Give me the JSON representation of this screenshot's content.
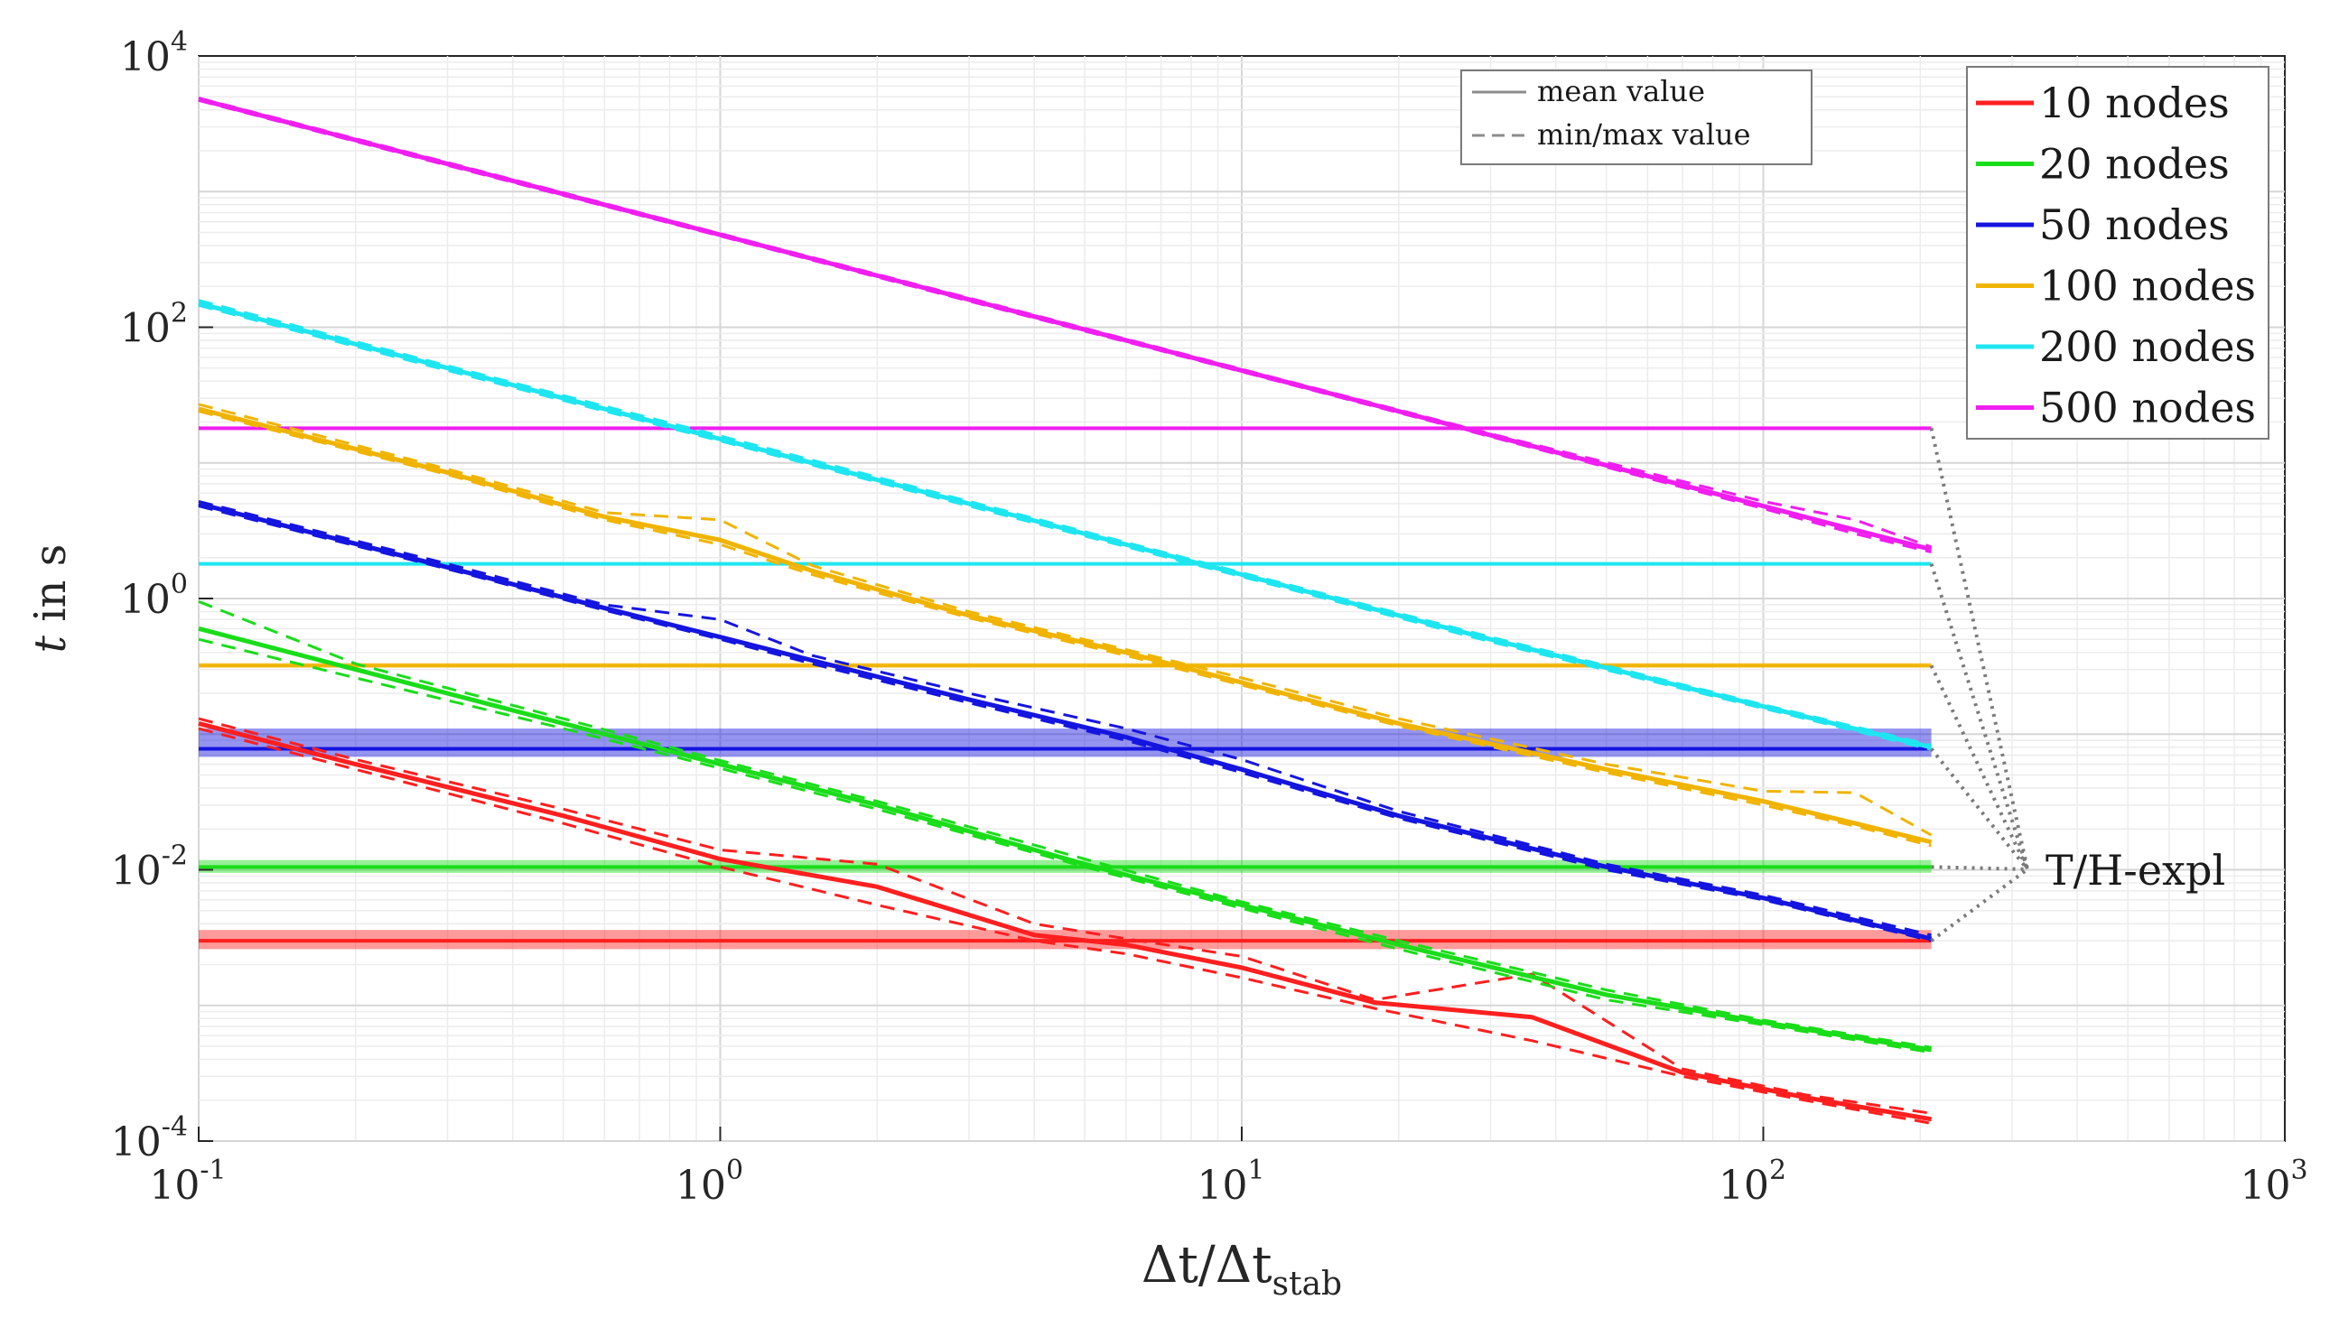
{
  "chart_data": {
    "type": "line",
    "scale": {
      "x": "log",
      "y": "log"
    },
    "xlim": [
      0.1,
      1000
    ],
    "ylim": [
      0.0001,
      10000
    ],
    "xlabel_main": "Δt/Δt",
    "xlabel_sub": "stab",
    "ylabel_italic": "t",
    "ylabel_rest": " in s",
    "grid": true,
    "minor_grid": true,
    "x_ticks": [
      {
        "base": "10",
        "exp": "-1"
      },
      {
        "base": "10",
        "exp": "0"
      },
      {
        "base": "10",
        "exp": "1"
      },
      {
        "base": "10",
        "exp": "2"
      },
      {
        "base": "10",
        "exp": "3"
      }
    ],
    "y_ticks": [
      {
        "base": "10",
        "exp": "-4"
      },
      {
        "base": "10",
        "exp": "-2"
      },
      {
        "base": "10",
        "exp": "0"
      },
      {
        "base": "10",
        "exp": "2"
      },
      {
        "base": "10",
        "exp": "4"
      }
    ],
    "legend_style": {
      "position": "top-center-right",
      "mean": "mean value",
      "minmax": "min/max value"
    },
    "legend_position": "top-right",
    "series": [
      {
        "name": "10 nodes",
        "color": "#ff1f1f",
        "x": [
          0.1,
          0.2,
          0.5,
          1,
          2,
          4,
          6,
          10,
          18,
          36,
          70,
          120,
          210
        ],
        "mean": [
          0.12,
          0.06,
          0.025,
          0.012,
          0.0075,
          0.0033,
          0.0028,
          0.0019,
          0.00105,
          0.00082,
          0.00032,
          0.00021,
          0.000145
        ],
        "min": [
          0.11,
          0.055,
          0.022,
          0.0105,
          0.0055,
          0.003,
          0.0024,
          0.0016,
          0.00095,
          0.00055,
          0.0003,
          0.0002,
          0.000135
        ],
        "max": [
          0.13,
          0.065,
          0.028,
          0.014,
          0.011,
          0.004,
          0.0031,
          0.0023,
          0.0011,
          0.0017,
          0.00034,
          0.00022,
          0.00016
        ],
        "explicit": 0.003,
        "explicit_band": [
          0.0026,
          0.0036
        ]
      },
      {
        "name": "20 nodes",
        "color": "#19dd19",
        "x": [
          0.1,
          0.2,
          0.5,
          1,
          2,
          5,
          10,
          20,
          50,
          100,
          210
        ],
        "mean": [
          0.6,
          0.3,
          0.12,
          0.06,
          0.03,
          0.011,
          0.0055,
          0.0028,
          0.0012,
          0.00075,
          0.00047
        ],
        "min": [
          0.5,
          0.26,
          0.11,
          0.056,
          0.028,
          0.0105,
          0.0052,
          0.0026,
          0.0011,
          0.00072,
          0.00045
        ],
        "max": [
          0.95,
          0.33,
          0.13,
          0.064,
          0.032,
          0.012,
          0.0058,
          0.003,
          0.0013,
          0.00078,
          0.00049
        ],
        "explicit": 0.0105,
        "explicit_band": [
          0.0095,
          0.0118
        ]
      },
      {
        "name": "50 nodes",
        "color": "#1515e0",
        "x": [
          0.1,
          0.3,
          0.6,
          1,
          1.5,
          3,
          6,
          10,
          20,
          50,
          100,
          210
        ],
        "mean": [
          5.0,
          1.7,
          0.85,
          0.52,
          0.35,
          0.18,
          0.095,
          0.055,
          0.025,
          0.0105,
          0.0062,
          0.0031
        ],
        "min": [
          4.8,
          1.65,
          0.82,
          0.5,
          0.33,
          0.17,
          0.09,
          0.052,
          0.024,
          0.01,
          0.006,
          0.003
        ],
        "max": [
          5.2,
          1.8,
          0.9,
          0.7,
          0.38,
          0.2,
          0.11,
          0.065,
          0.027,
          0.011,
          0.0065,
          0.0033
        ],
        "explicit": 0.078,
        "explicit_band": [
          0.068,
          0.11
        ]
      },
      {
        "name": "100 nodes",
        "color": "#f0b400",
        "x": [
          0.1,
          0.3,
          0.6,
          1,
          1.5,
          3,
          6,
          10,
          20,
          50,
          100,
          150,
          210
        ],
        "mean": [
          25,
          8.5,
          4.0,
          2.7,
          1.6,
          0.75,
          0.4,
          0.24,
          0.12,
          0.055,
          0.032,
          0.022,
          0.016
        ],
        "min": [
          24,
          8.2,
          3.8,
          2.5,
          1.5,
          0.72,
          0.38,
          0.23,
          0.115,
          0.052,
          0.03,
          0.021,
          0.015
        ],
        "max": [
          27,
          9.0,
          4.3,
          3.8,
          1.75,
          0.8,
          0.42,
          0.26,
          0.13,
          0.06,
          0.038,
          0.037,
          0.018
        ],
        "explicit": 0.32,
        "explicit_band": [
          0.31,
          0.335
        ]
      },
      {
        "name": "200 nodes",
        "color": "#1ee6f0",
        "x": [
          0.1,
          0.3,
          1,
          3,
          10,
          30,
          100,
          210
        ],
        "mean": [
          150,
          50,
          15,
          5,
          1.5,
          0.5,
          0.16,
          0.08
        ],
        "min": [
          145,
          48,
          14.5,
          4.8,
          1.45,
          0.48,
          0.155,
          0.077
        ],
        "max": [
          158,
          52,
          15.8,
          5.2,
          1.55,
          0.52,
          0.165,
          0.083
        ],
        "explicit": 1.8,
        "explicit_band": [
          1.75,
          1.85
        ]
      },
      {
        "name": "500 nodes",
        "color": "#f01ef0",
        "x": [
          0.1,
          0.3,
          1,
          3,
          10,
          30,
          100,
          150,
          210
        ],
        "mean": [
          4800,
          1600,
          480,
          160,
          48,
          16,
          4.8,
          3.2,
          2.3
        ],
        "min": [
          4700,
          1560,
          470,
          156,
          47,
          15.6,
          4.6,
          3.0,
          2.2
        ],
        "max": [
          4900,
          1640,
          490,
          164,
          49,
          16.4,
          5.2,
          3.8,
          2.4
        ],
        "explicit": 18,
        "explicit_band": [
          17.5,
          18.5
        ]
      }
    ],
    "annotation": {
      "text": "T/H-expl",
      "x_end": 210
    }
  }
}
